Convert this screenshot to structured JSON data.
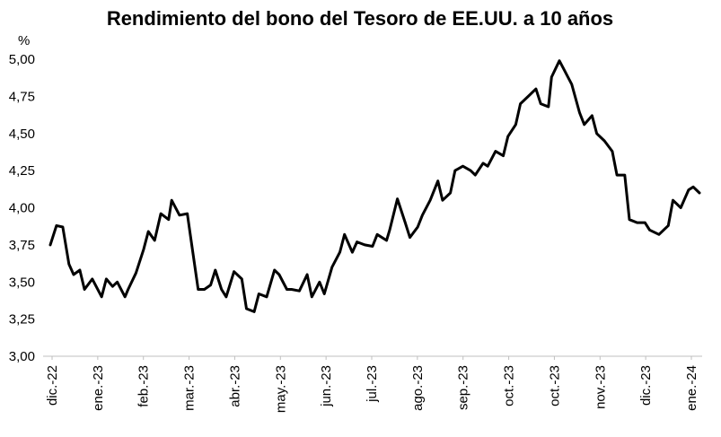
{
  "chart_data": {
    "type": "line",
    "title": "Rendimiento del bono del Tesoro de EE.UU. a 10 años",
    "ylabel": "%",
    "xlabel": "",
    "ylim": [
      3.0,
      5.0
    ],
    "yticks": [
      "3,00",
      "3,25",
      "3,50",
      "3,75",
      "4,00",
      "4,25",
      "4,50",
      "4,75",
      "5,00"
    ],
    "x_ticks": [
      "dic.-22",
      "ene.-23",
      "feb.-23",
      "mar.-23",
      "abr.-23",
      "may.-23",
      "jun.-23",
      "jul.-23",
      "ago.-23",
      "sep.-23",
      "oct.-23",
      "oct.-23",
      "nov.-23",
      "dic.-23",
      "ene.-24"
    ],
    "grid": false,
    "legend": "none",
    "series": [
      {
        "color": "#000000",
        "x": [
          "2022-12-01",
          "2022-12-05",
          "2022-12-09",
          "2022-12-13",
          "2022-12-16",
          "2022-12-20",
          "2022-12-23",
          "2022-12-28",
          "2023-01-03",
          "2023-01-06",
          "2023-01-10",
          "2023-01-13",
          "2023-01-18",
          "2023-01-20",
          "2023-01-25",
          "2023-01-30",
          "2023-02-02",
          "2023-02-06",
          "2023-02-10",
          "2023-02-15",
          "2023-02-17",
          "2023-02-22",
          "2023-02-27",
          "2023-03-02",
          "2023-03-06",
          "2023-03-10",
          "2023-03-14",
          "2023-03-17",
          "2023-03-21",
          "2023-03-24",
          "2023-03-29",
          "2023-04-03",
          "2023-04-06",
          "2023-04-11",
          "2023-04-14",
          "2023-04-19",
          "2023-04-24",
          "2023-04-27",
          "2023-05-02",
          "2023-05-05",
          "2023-05-10",
          "2023-05-15",
          "2023-05-18",
          "2023-05-23",
          "2023-05-26",
          "2023-05-31",
          "2023-06-05",
          "2023-06-08",
          "2023-06-13",
          "2023-06-16",
          "2023-06-21",
          "2023-06-26",
          "2023-06-29",
          "2023-07-05",
          "2023-07-07",
          "2023-07-12",
          "2023-07-17",
          "2023-07-20",
          "2023-07-25",
          "2023-07-28",
          "2023-08-02",
          "2023-08-07",
          "2023-08-10",
          "2023-08-15",
          "2023-08-18",
          "2023-08-23",
          "2023-08-28",
          "2023-08-31",
          "2023-09-05",
          "2023-09-08",
          "2023-09-13",
          "2023-09-18",
          "2023-09-21",
          "2023-09-26",
          "2023-09-29",
          "2023-10-04",
          "2023-10-09",
          "2023-10-12",
          "2023-10-17",
          "2023-10-19",
          "2023-10-24",
          "2023-10-27",
          "2023-11-01",
          "2023-11-06",
          "2023-11-09",
          "2023-11-14",
          "2023-11-17",
          "2023-11-22",
          "2023-11-27",
          "2023-11-30",
          "2023-12-05",
          "2023-12-08",
          "2023-12-13",
          "2023-12-18",
          "2023-12-21",
          "2023-12-27",
          "2024-01-02",
          "2024-01-05",
          "2024-01-10",
          "2024-01-15",
          "2024-01-18",
          "2024-01-22"
        ],
        "values": [
          3.75,
          3.88,
          3.87,
          3.62,
          3.55,
          3.58,
          3.45,
          3.52,
          3.4,
          3.52,
          3.47,
          3.5,
          3.4,
          3.45,
          3.56,
          3.72,
          3.84,
          3.78,
          3.96,
          3.92,
          4.05,
          3.95,
          3.96,
          3.74,
          3.45,
          3.45,
          3.48,
          3.58,
          3.45,
          3.4,
          3.57,
          3.52,
          3.32,
          3.3,
          3.42,
          3.4,
          3.58,
          3.55,
          3.45,
          3.45,
          3.44,
          3.55,
          3.4,
          3.5,
          3.42,
          3.6,
          3.7,
          3.82,
          3.7,
          3.77,
          3.75,
          3.74,
          3.82,
          3.78,
          3.85,
          4.06,
          3.9,
          3.8,
          3.87,
          3.95,
          4.05,
          4.18,
          4.05,
          4.1,
          4.25,
          4.28,
          4.25,
          4.22,
          4.3,
          4.28,
          4.38,
          4.35,
          4.48,
          4.56,
          4.7,
          4.75,
          4.8,
          4.7,
          4.68,
          4.88,
          4.99,
          4.93,
          4.83,
          4.64,
          4.56,
          4.62,
          4.5,
          4.45,
          4.38,
          4.22,
          4.22,
          3.92,
          3.9,
          3.9,
          3.85,
          3.82,
          3.88,
          4.05,
          4.0,
          4.12,
          4.14,
          4.1
        ]
      }
    ]
  }
}
